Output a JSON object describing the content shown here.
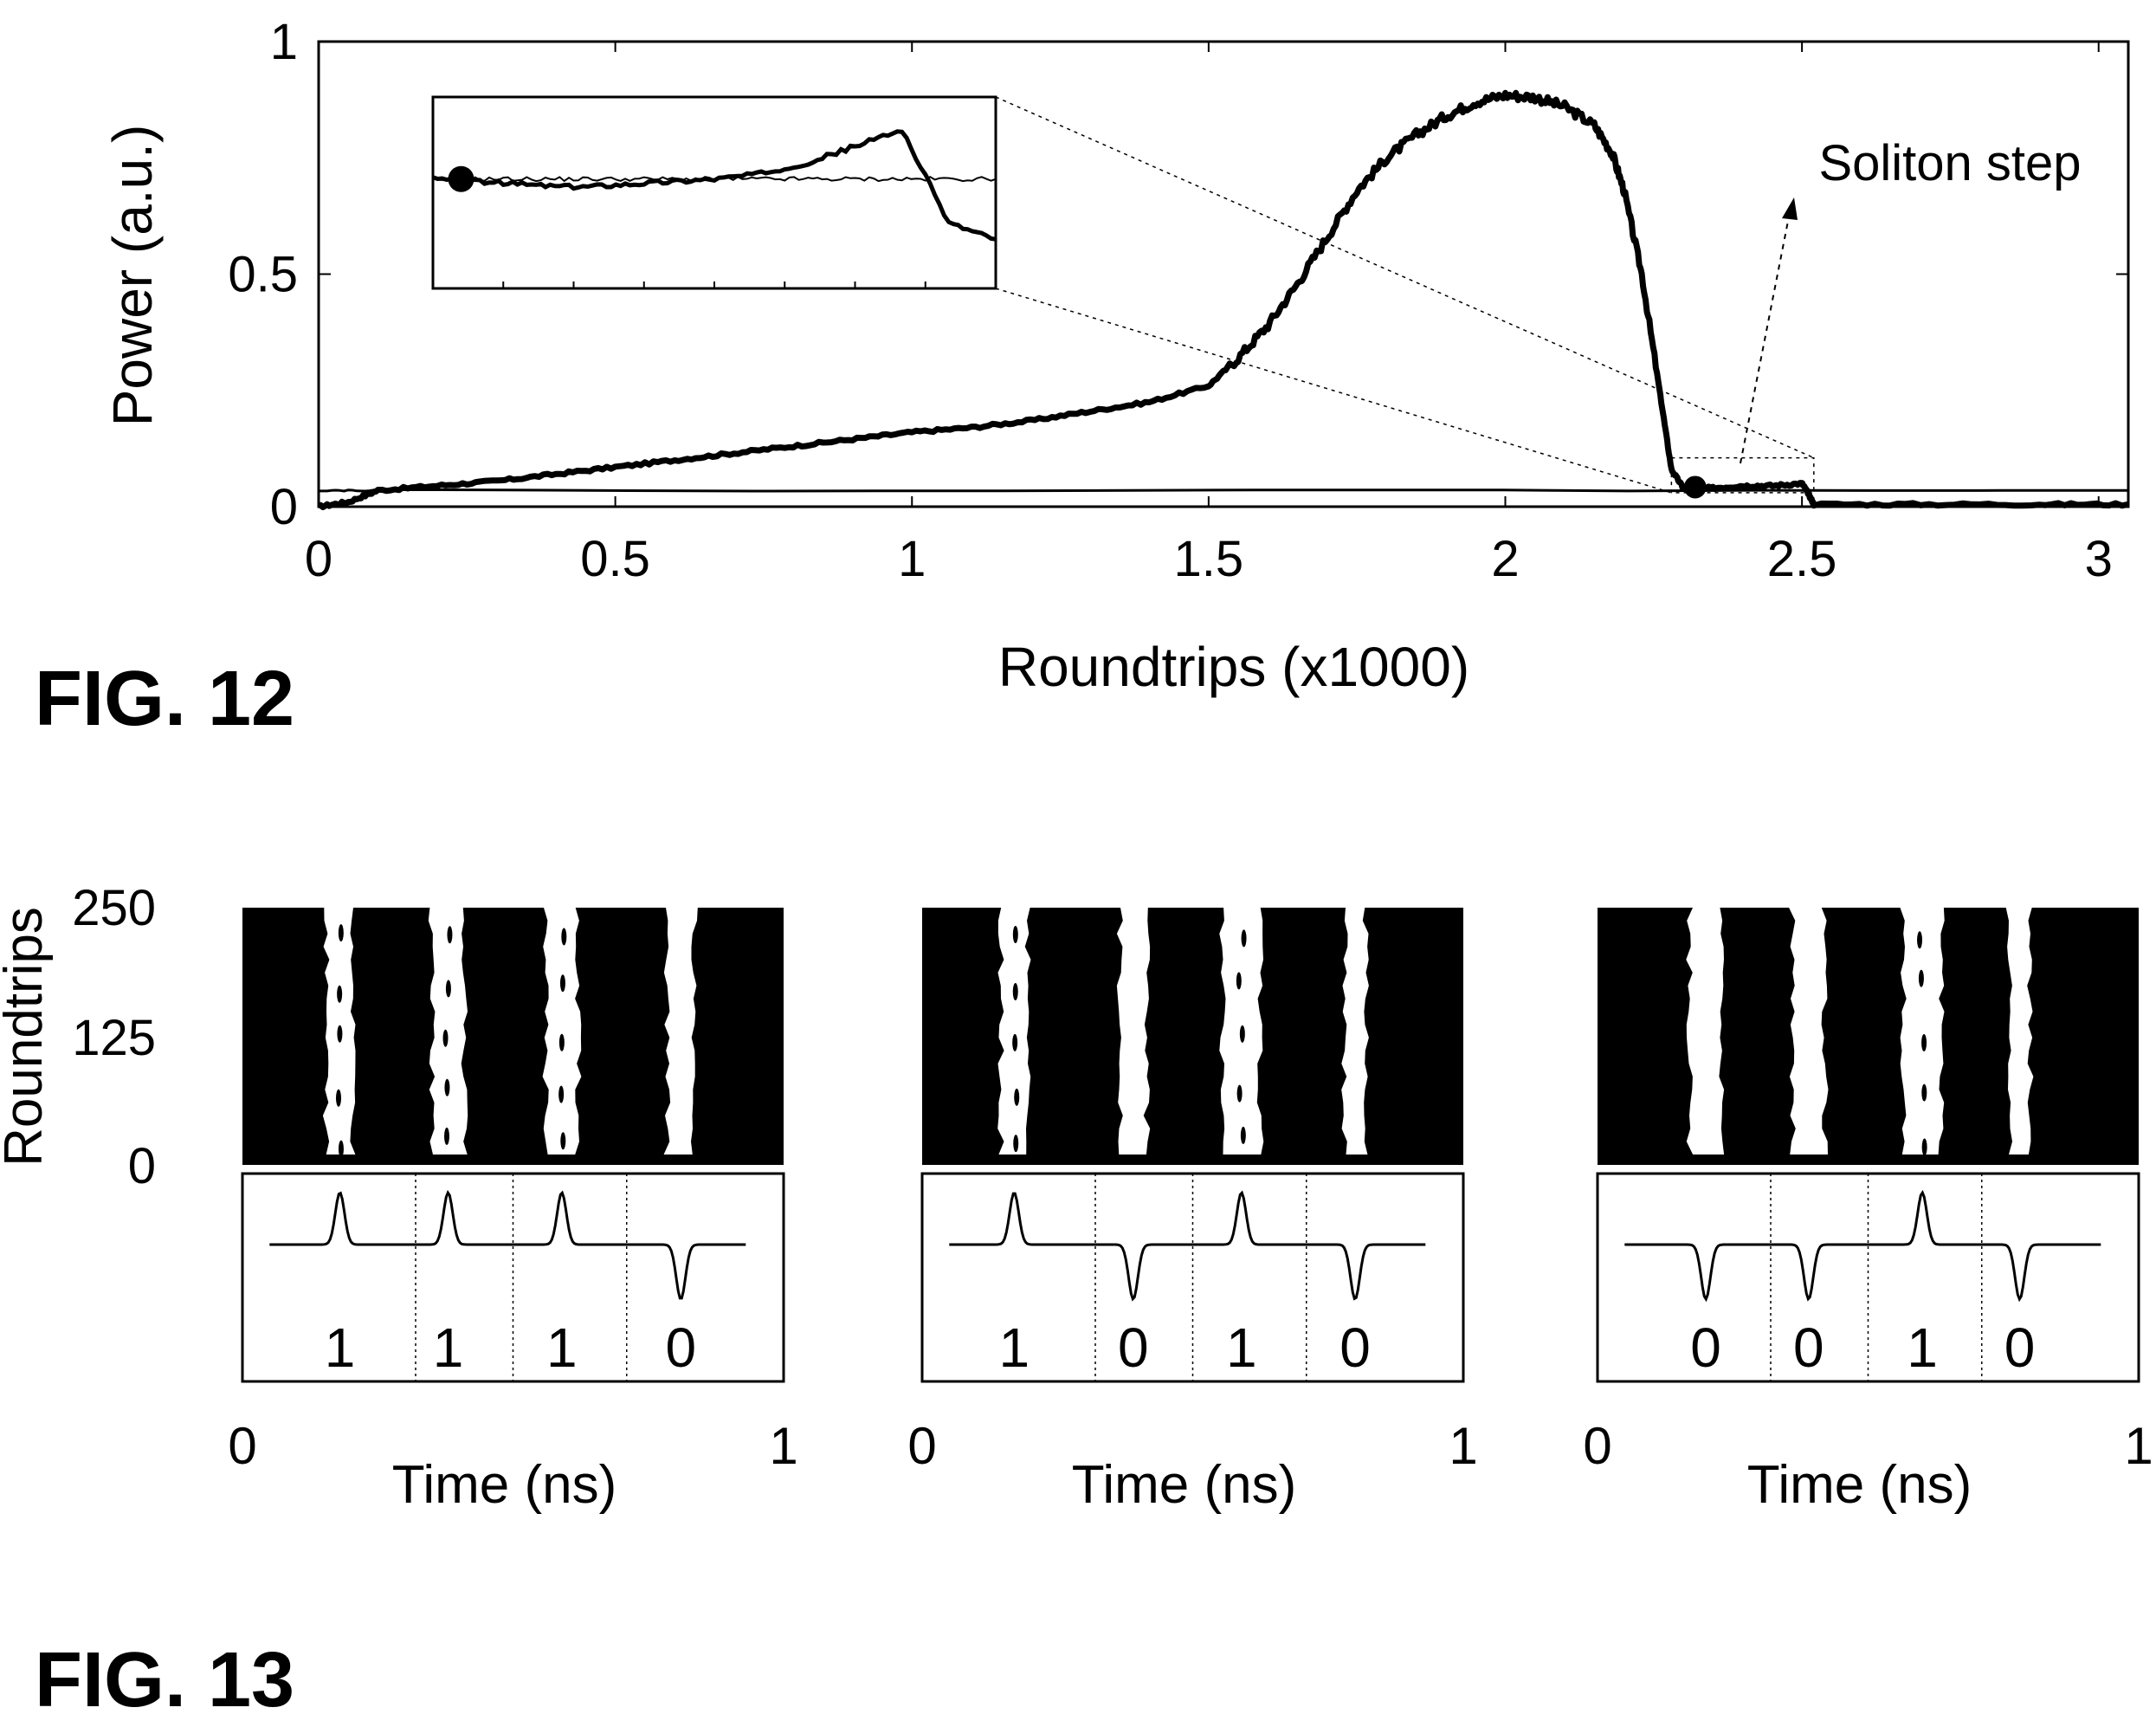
{
  "chart_data": [
    {
      "type": "line",
      "figure_label": "FIG. 12",
      "xlabel": "Roundtrips (x1000)",
      "ylabel": "Power (a.u.)",
      "xlim": [
        0,
        3.05
      ],
      "ylim": [
        0,
        1
      ],
      "x_ticks": [
        "0",
        "0.5",
        "1",
        "1.5",
        "2",
        "2.5",
        "3"
      ],
      "y_ticks": [
        "0",
        "0.5",
        "1"
      ],
      "grid": false,
      "annotation": "Soliton step",
      "series": [
        {
          "style": "thick",
          "x": [
            0,
            0.05,
            0.1,
            0.2,
            0.3,
            0.4,
            0.5,
            0.6,
            0.7,
            0.8,
            0.9,
            1.0,
            1.1,
            1.2,
            1.3,
            1.4,
            1.5,
            1.55,
            1.6,
            1.65,
            1.7,
            1.75,
            1.8,
            1.85,
            1.9,
            1.95,
            2.0,
            2.05,
            2.1,
            2.15,
            2.18,
            2.2,
            2.23,
            2.26,
            2.28,
            2.3,
            2.35,
            2.4,
            2.45,
            2.5,
            2.51,
            2.52,
            2.7,
            2.9,
            3.05
          ],
          "y": [
            0,
            0.01,
            0.035,
            0.045,
            0.055,
            0.07,
            0.085,
            0.1,
            0.115,
            0.13,
            0.145,
            0.16,
            0.17,
            0.185,
            0.205,
            0.225,
            0.26,
            0.32,
            0.39,
            0.48,
            0.58,
            0.68,
            0.75,
            0.8,
            0.84,
            0.87,
            0.885,
            0.88,
            0.86,
            0.82,
            0.76,
            0.68,
            0.5,
            0.25,
            0.08,
            0.04,
            0.04,
            0.045,
            0.045,
            0.05,
            0.03,
            0.005,
            0.005,
            0.005,
            0.005
          ]
        },
        {
          "style": "thin",
          "x": [
            0,
            0.1,
            3.05
          ],
          "y": [
            0.035,
            0.035,
            0.035
          ]
        }
      ],
      "markers": [
        {
          "x": 2.32,
          "y": 0.042
        }
      ],
      "inset": {
        "x_range": [
          0.1,
          2.5
        ],
        "thick": [
          0.6,
          0.595,
          0.59,
          0.585,
          0.59,
          0.595,
          0.6,
          0.61,
          0.63,
          0.66,
          0.69,
          0.52,
          0.49
        ],
        "thin": [
          0.6,
          0.6,
          0.6,
          0.6,
          0.6,
          0.6,
          0.6,
          0.6,
          0.6,
          0.6,
          0.6,
          0.6,
          0.6
        ],
        "marker_fraction": 0.05
      }
    },
    {
      "type": "heatmap",
      "figure_label": "FIG. 13",
      "ylabel": "Roundtrips",
      "xlabel": "Time (ns)",
      "y_ticks": [
        "0",
        "125",
        "250"
      ],
      "x_ticks": [
        "0",
        "1"
      ],
      "xlim": [
        0,
        1
      ],
      "ylim": [
        0,
        250
      ],
      "panels": [
        {
          "bits": [
            "1",
            "1",
            "1",
            "0"
          ],
          "stripe_centers": [
            0.18,
            0.38,
            0.59,
            0.81
          ],
          "stripe_widths": [
            0.05,
            0.06,
            0.06,
            0.05
          ]
        },
        {
          "bits": [
            "1",
            "0",
            "1",
            "0"
          ],
          "stripe_centers": [
            0.17,
            0.39,
            0.59,
            0.8
          ],
          "stripe_widths": [
            0.05,
            0.05,
            0.07,
            0.04
          ]
        },
        {
          "bits": [
            "0",
            "0",
            "1",
            "0"
          ],
          "stripe_centers": [
            0.2,
            0.39,
            0.6,
            0.78
          ],
          "stripe_widths": [
            0.06,
            0.06,
            0.07,
            0.04
          ]
        }
      ]
    }
  ]
}
